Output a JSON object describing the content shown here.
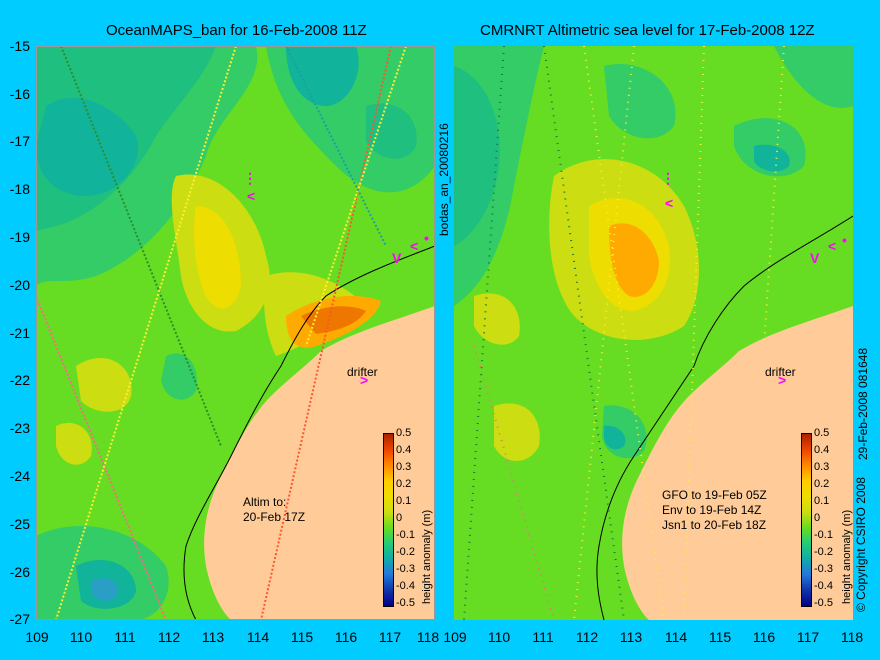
{
  "colors": {
    "background": "#00ccff",
    "land": "#ffcc99",
    "sea_base": "#66dd22",
    "mark": "#ff00ff"
  },
  "left_panel": {
    "title": "OceanMAPS_ban for 16-Feb-2008 11Z",
    "side_label": "bodas_an_20080216",
    "altim_note": [
      "Altim to:",
      "20-Feb 17Z"
    ]
  },
  "right_panel": {
    "title": "CMRNRT Altimetric sea level  for 17-Feb-2008 12Z",
    "side_label": "29-Feb-2008 081648",
    "satellite_notes": [
      "GFO to 19-Feb 05Z",
      "Env to 19-Feb 14Z",
      "Jsn1 to 20-Feb 18Z"
    ]
  },
  "shared": {
    "y_ticks": [
      "-15",
      "-16",
      "-17",
      "-18",
      "-19",
      "-20",
      "-21",
      "-22",
      "-23",
      "-24",
      "-25",
      "-26",
      "-27"
    ],
    "x_ticks": [
      "109",
      "110",
      "111",
      "112",
      "113",
      "114",
      "115",
      "116",
      "117",
      "118"
    ],
    "drifter_label": "drifter",
    "drifter_mark": ">",
    "colorbar_ticks": [
      "0.5",
      "0.4",
      "0.3",
      "0.2",
      "0.1",
      "0",
      "-0.1",
      "-0.2",
      "-0.3",
      "-0.4",
      "-0.5"
    ],
    "colorbar_label": "height anomaly (m)",
    "copyright": "© Copyright CSIRO 2008"
  }
}
